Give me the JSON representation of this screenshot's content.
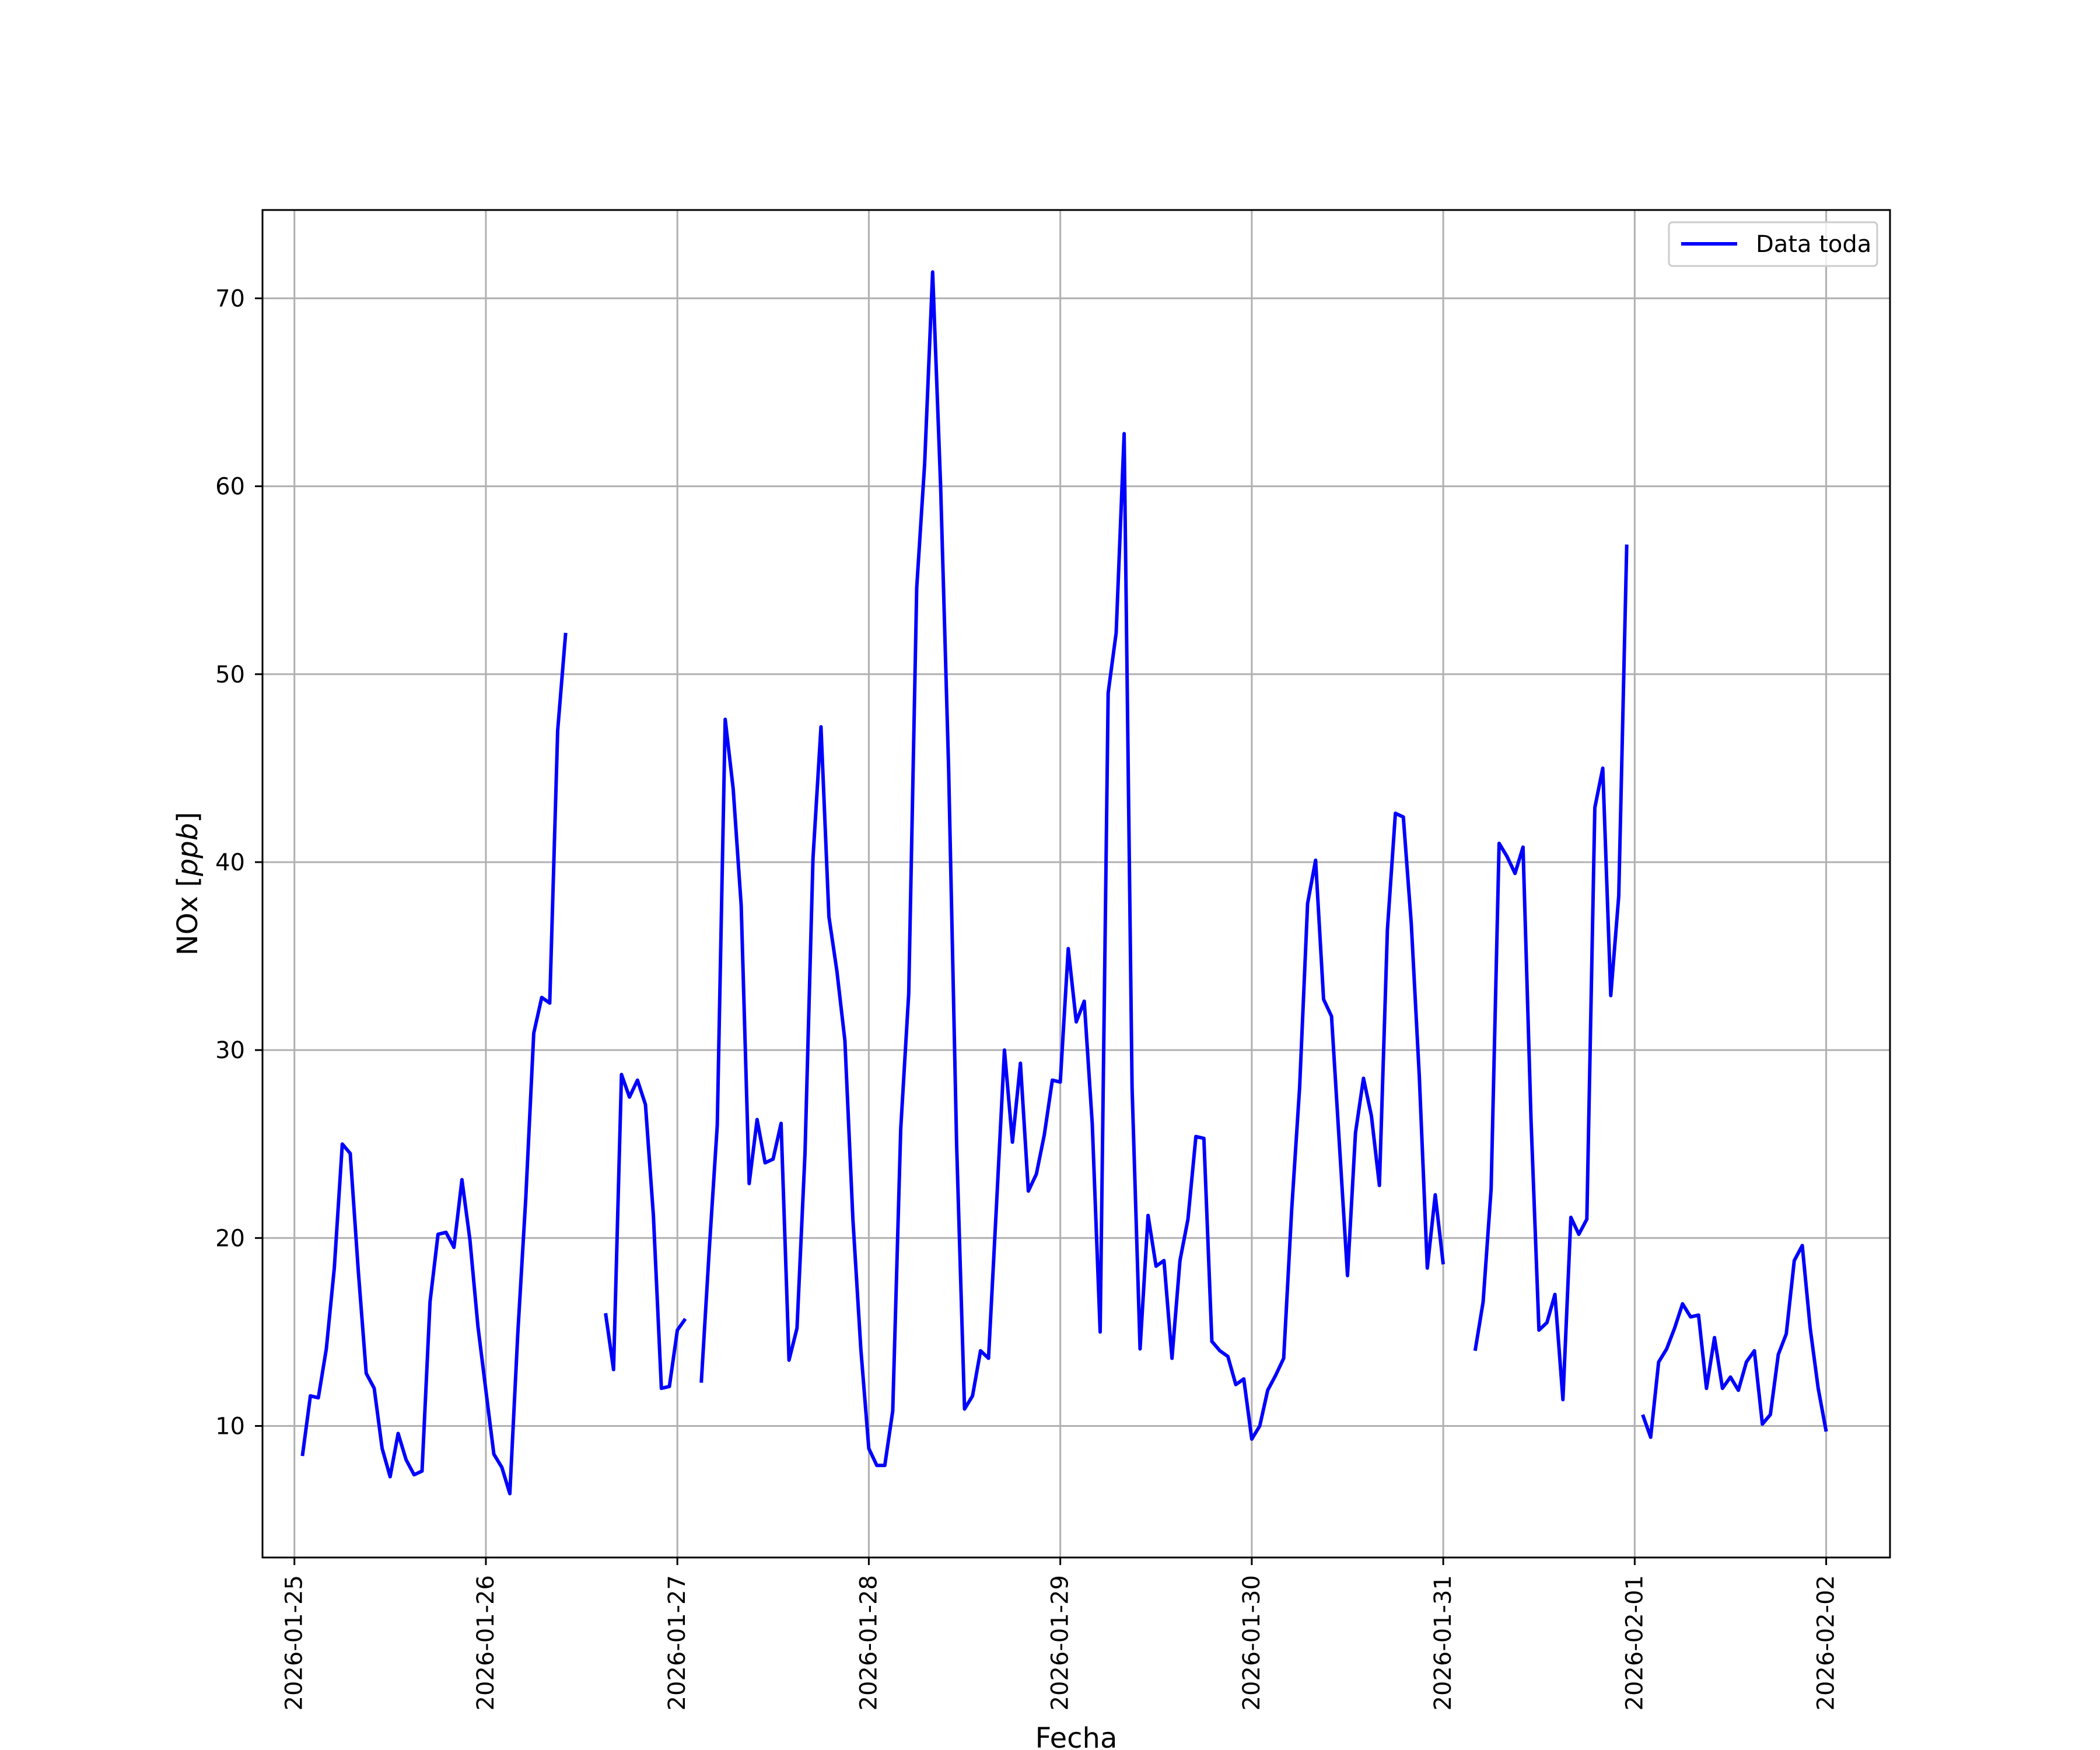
{
  "chart_data": {
    "type": "line",
    "title": "",
    "xlabel": "Fecha",
    "ylabel": "NOx [ppb]",
    "ylabel_main": "NOx [",
    "ylabel_unit": "ppb",
    "ylabel_close": "]",
    "xlim": [
      "2026-01-24 20:00",
      "2026-02-02 08:00"
    ],
    "ylim": [
      3,
      74.7
    ],
    "grid": true,
    "legend": {
      "position": "top-right",
      "entries": [
        "Data toda"
      ]
    },
    "x_ticks": [
      "2026-01-25",
      "2026-01-26",
      "2026-01-27",
      "2026-01-28",
      "2026-01-29",
      "2026-01-30",
      "2026-01-31",
      "2026-02-01",
      "2026-02-02"
    ],
    "y_ticks": [
      10,
      20,
      30,
      40,
      50,
      60,
      70
    ],
    "series": [
      {
        "name": "Data toda",
        "color": "#0000ff",
        "points": [
          [
            "2026-01-25 01:00",
            8.4
          ],
          [
            "2026-01-25 02:00",
            11.6
          ],
          [
            "2026-01-25 03:00",
            11.5
          ],
          [
            "2026-01-25 04:00",
            14.1
          ],
          [
            "2026-01-25 05:00",
            18.4
          ],
          [
            "2026-01-25 06:00",
            25.0
          ],
          [
            "2026-01-25 07:00",
            24.5
          ],
          [
            "2026-01-25 08:00",
            18.3
          ],
          [
            "2026-01-25 09:00",
            12.8
          ],
          [
            "2026-01-25 10:00",
            12.0
          ],
          [
            "2026-01-25 11:00",
            8.8
          ],
          [
            "2026-01-25 12:00",
            7.3
          ],
          [
            "2026-01-25 13:00",
            9.6
          ],
          [
            "2026-01-25 14:00",
            8.2
          ],
          [
            "2026-01-25 15:00",
            7.4
          ],
          [
            "2026-01-25 16:00",
            7.6
          ],
          [
            "2026-01-25 17:00",
            16.6
          ],
          [
            "2026-01-25 18:00",
            20.2
          ],
          [
            "2026-01-25 19:00",
            20.3
          ],
          [
            "2026-01-25 20:00",
            19.5
          ],
          [
            "2026-01-25 21:00",
            23.1
          ],
          [
            "2026-01-25 22:00",
            19.9
          ],
          [
            "2026-01-25 23:00",
            15.3
          ],
          [
            "2026-01-26 00:00",
            11.9
          ],
          [
            "2026-01-26 01:00",
            8.5
          ],
          [
            "2026-01-26 02:00",
            7.8
          ],
          [
            "2026-01-26 03:00",
            6.4
          ],
          [
            "2026-01-26 04:00",
            14.9
          ],
          [
            "2026-01-26 05:00",
            22.1
          ],
          [
            "2026-01-26 06:00",
            30.9
          ],
          [
            "2026-01-26 07:00",
            32.8
          ],
          [
            "2026-01-26 08:00",
            32.5
          ],
          [
            "2026-01-26 09:00",
            47.0
          ],
          [
            "2026-01-26 10:00",
            52.2
          ],
          null,
          [
            "2026-01-26 15:00",
            16.0
          ],
          [
            "2026-01-26 16:00",
            13.0
          ],
          [
            "2026-01-26 17:00",
            28.7
          ],
          [
            "2026-01-26 18:00",
            27.5
          ],
          [
            "2026-01-26 19:00",
            28.4
          ],
          [
            "2026-01-26 20:00",
            27.1
          ],
          [
            "2026-01-26 21:00",
            21.2
          ],
          [
            "2026-01-26 22:00",
            12.0
          ],
          [
            "2026-01-26 23:00",
            12.1
          ],
          [
            "2026-01-27 00:00",
            15.1
          ],
          [
            "2026-01-27 01:00",
            15.7
          ],
          null,
          [
            "2026-01-27 03:00",
            12.3
          ],
          [
            "2026-01-27 04:00",
            19.4
          ],
          [
            "2026-01-27 05:00",
            26.0
          ],
          [
            "2026-01-27 06:00",
            47.6
          ],
          [
            "2026-01-27 07:00",
            43.9
          ],
          [
            "2026-01-27 08:00",
            37.7
          ],
          [
            "2026-01-27 09:00",
            22.9
          ],
          [
            "2026-01-27 10:00",
            26.3
          ],
          [
            "2026-01-27 11:00",
            24.0
          ],
          [
            "2026-01-27 12:00",
            24.2
          ],
          [
            "2026-01-27 13:00",
            26.1
          ],
          [
            "2026-01-27 14:00",
            13.5
          ],
          [
            "2026-01-27 15:00",
            15.2
          ],
          [
            "2026-01-27 16:00",
            24.5
          ],
          [
            "2026-01-27 17:00",
            40.2
          ],
          [
            "2026-01-27 18:00",
            47.2
          ],
          [
            "2026-01-27 19:00",
            37.1
          ],
          [
            "2026-01-27 20:00",
            34.2
          ],
          [
            "2026-01-27 21:00",
            30.5
          ],
          [
            "2026-01-27 22:00",
            21.0
          ],
          [
            "2026-01-27 23:00",
            14.1
          ],
          [
            "2026-01-28 00:00",
            8.8
          ],
          [
            "2026-01-28 01:00",
            7.9
          ],
          [
            "2026-01-28 02:00",
            7.9
          ],
          [
            "2026-01-28 03:00",
            10.8
          ],
          [
            "2026-01-28 04:00",
            25.8
          ],
          [
            "2026-01-28 05:00",
            33.0
          ],
          [
            "2026-01-28 06:00",
            54.6
          ],
          [
            "2026-01-28 07:00",
            61.2
          ],
          [
            "2026-01-28 08:00",
            71.4
          ],
          [
            "2026-01-28 09:00",
            60.0
          ],
          [
            "2026-01-28 10:00",
            45.0
          ],
          [
            "2026-01-28 11:00",
            25.0
          ],
          [
            "2026-01-28 12:00",
            10.9
          ],
          [
            "2026-01-28 13:00",
            11.6
          ],
          [
            "2026-01-28 14:00",
            14.0
          ],
          [
            "2026-01-28 15:00",
            13.6
          ],
          [
            "2026-01-28 16:00",
            21.7
          ],
          [
            "2026-01-28 17:00",
            30.0
          ],
          [
            "2026-01-28 18:00",
            25.1
          ],
          [
            "2026-01-28 19:00",
            29.3
          ],
          [
            "2026-01-28 20:00",
            22.5
          ],
          [
            "2026-01-28 21:00",
            23.4
          ],
          [
            "2026-01-28 22:00",
            25.5
          ],
          [
            "2026-01-28 23:00",
            28.4
          ],
          [
            "2026-01-29 00:00",
            28.3
          ],
          [
            "2026-01-29 01:00",
            35.4
          ],
          [
            "2026-01-29 02:00",
            31.5
          ],
          [
            "2026-01-29 03:00",
            32.6
          ],
          [
            "2026-01-29 04:00",
            26.1
          ],
          [
            "2026-01-29 05:00",
            15.0
          ],
          [
            "2026-01-29 06:00",
            49.0
          ],
          [
            "2026-01-29 07:00",
            52.2
          ],
          [
            "2026-01-29 08:00",
            62.8
          ],
          [
            "2026-01-29 09:00",
            28.0
          ],
          [
            "2026-01-29 10:00",
            14.1
          ],
          [
            "2026-01-29 11:00",
            21.2
          ],
          [
            "2026-01-29 12:00",
            18.5
          ],
          [
            "2026-01-29 13:00",
            18.8
          ],
          [
            "2026-01-29 14:00",
            13.6
          ],
          [
            "2026-01-29 15:00",
            18.8
          ],
          [
            "2026-01-29 16:00",
            21.0
          ],
          [
            "2026-01-29 17:00",
            25.4
          ],
          [
            "2026-01-29 18:00",
            25.3
          ],
          [
            "2026-01-29 19:00",
            14.5
          ],
          [
            "2026-01-29 20:00",
            14.0
          ],
          [
            "2026-01-29 21:00",
            13.7
          ],
          [
            "2026-01-29 22:00",
            12.2
          ],
          [
            "2026-01-29 23:00",
            12.5
          ],
          [
            "2026-01-30 00:00",
            9.3
          ],
          [
            "2026-01-30 01:00",
            10.0
          ],
          [
            "2026-01-30 02:00",
            11.9
          ],
          [
            "2026-01-30 03:00",
            12.7
          ],
          [
            "2026-01-30 04:00",
            13.6
          ],
          [
            "2026-01-30 05:00",
            21.5
          ],
          [
            "2026-01-30 06:00",
            28.0
          ],
          [
            "2026-01-30 07:00",
            37.8
          ],
          [
            "2026-01-30 08:00",
            40.1
          ],
          [
            "2026-01-30 09:00",
            32.7
          ],
          [
            "2026-01-30 10:00",
            31.8
          ],
          [
            "2026-01-30 11:00",
            24.9
          ],
          [
            "2026-01-30 12:00",
            18.0
          ],
          [
            "2026-01-30 13:00",
            25.6
          ],
          [
            "2026-01-30 14:00",
            28.5
          ],
          [
            "2026-01-30 15:00",
            26.5
          ],
          [
            "2026-01-30 16:00",
            22.8
          ],
          [
            "2026-01-30 17:00",
            36.4
          ],
          [
            "2026-01-30 18:00",
            42.6
          ],
          [
            "2026-01-30 19:00",
            42.4
          ],
          [
            "2026-01-30 20:00",
            36.7
          ],
          [
            "2026-01-30 21:00",
            28.6
          ],
          [
            "2026-01-30 22:00",
            18.4
          ],
          [
            "2026-01-30 23:00",
            22.3
          ],
          [
            "2026-01-31 00:00",
            18.6
          ],
          null,
          [
            "2026-01-31 04:00",
            14.0
          ],
          [
            "2026-01-31 05:00",
            16.6
          ],
          [
            "2026-01-31 06:00",
            22.6
          ],
          [
            "2026-01-31 07:00",
            41.0
          ],
          [
            "2026-01-31 08:00",
            40.3
          ],
          [
            "2026-01-31 09:00",
            39.4
          ],
          [
            "2026-01-31 10:00",
            40.8
          ],
          [
            "2026-01-31 11:00",
            26.3
          ],
          [
            "2026-01-31 12:00",
            15.1
          ],
          [
            "2026-01-31 13:00",
            15.5
          ],
          [
            "2026-01-31 14:00",
            17.0
          ],
          [
            "2026-01-31 15:00",
            11.4
          ],
          [
            "2026-01-31 16:00",
            21.1
          ],
          [
            "2026-01-31 17:00",
            20.2
          ],
          [
            "2026-01-31 18:00",
            21.0
          ],
          [
            "2026-01-31 19:00",
            42.9
          ],
          [
            "2026-01-31 20:00",
            45.0
          ],
          [
            "2026-01-31 21:00",
            32.9
          ],
          [
            "2026-01-31 22:00",
            38.2
          ],
          [
            "2026-01-31 23:00",
            56.9
          ],
          null,
          [
            "2026-02-01 01:00",
            10.6
          ],
          [
            "2026-02-01 02:00",
            9.4
          ],
          [
            "2026-02-01 03:00",
            13.4
          ],
          [
            "2026-02-01 04:00",
            14.1
          ],
          [
            "2026-02-01 05:00",
            15.2
          ],
          [
            "2026-02-01 06:00",
            16.5
          ],
          [
            "2026-02-01 07:00",
            15.8
          ],
          [
            "2026-02-01 08:00",
            15.9
          ],
          [
            "2026-02-01 09:00",
            12.0
          ],
          [
            "2026-02-01 10:00",
            14.7
          ],
          [
            "2026-02-01 11:00",
            12.0
          ],
          [
            "2026-02-01 12:00",
            12.6
          ],
          [
            "2026-02-01 13:00",
            11.9
          ],
          [
            "2026-02-01 14:00",
            13.4
          ],
          [
            "2026-02-01 15:00",
            14.0
          ],
          [
            "2026-02-01 16:00",
            10.1
          ],
          [
            "2026-02-01 17:00",
            10.6
          ],
          [
            "2026-02-01 18:00",
            13.8
          ],
          [
            "2026-02-01 19:00",
            14.9
          ],
          [
            "2026-02-01 20:00",
            18.8
          ],
          [
            "2026-02-01 21:00",
            19.6
          ],
          [
            "2026-02-01 22:00",
            15.2
          ],
          [
            "2026-02-01 23:00",
            12.0
          ],
          [
            "2026-02-02 00:00",
            9.7
          ]
        ]
      }
    ]
  }
}
